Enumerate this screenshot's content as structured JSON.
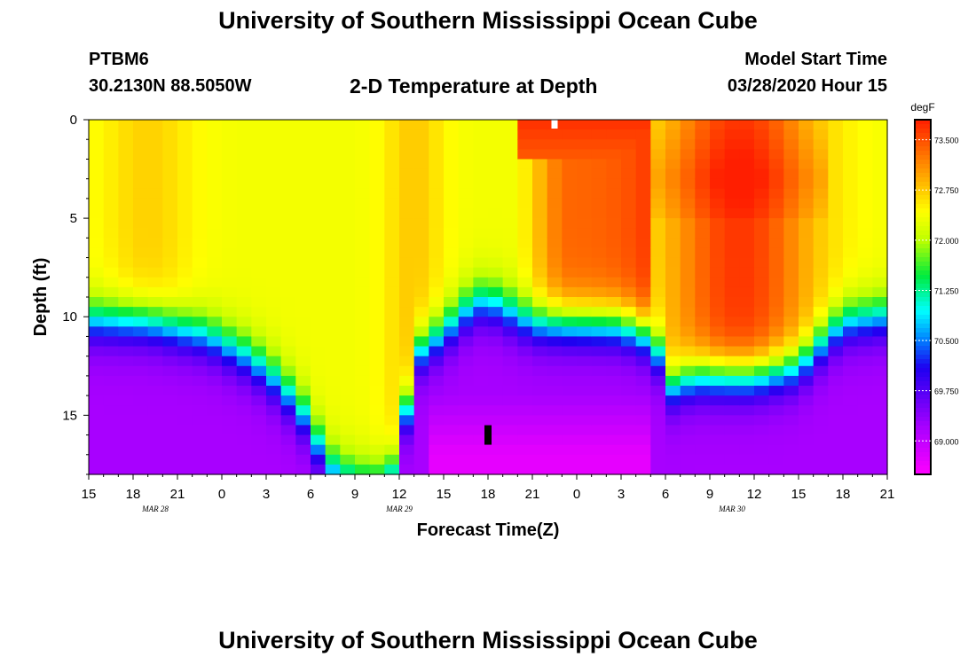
{
  "header": {
    "title": "University of Southern Mississippi Ocean Cube",
    "station_id": "PTBM6",
    "station_coords": "30.2130N 88.5050W",
    "plot_title": "2-D Temperature at Depth",
    "model_start_label": "Model Start Time",
    "model_start_value": "03/28/2020 Hour 15"
  },
  "footer": {
    "title": "University of Southern Mississippi Ocean Cube"
  },
  "chart_data": {
    "type": "heatmap",
    "title": "2-D Temperature at Depth",
    "xlabel": "Forecast Time(Z)",
    "ylabel": "Depth (ft)",
    "x_hours_range": [
      0,
      54
    ],
    "x_ticks": [
      {
        "h": 0,
        "label": "15"
      },
      {
        "h": 3,
        "label": "18"
      },
      {
        "h": 6,
        "label": "21"
      },
      {
        "h": 9,
        "label": "0"
      },
      {
        "h": 12,
        "label": "3"
      },
      {
        "h": 15,
        "label": "6"
      },
      {
        "h": 18,
        "label": "9"
      },
      {
        "h": 21,
        "label": "12"
      },
      {
        "h": 24,
        "label": "15"
      },
      {
        "h": 27,
        "label": "18"
      },
      {
        "h": 30,
        "label": "21"
      },
      {
        "h": 33,
        "label": "0"
      },
      {
        "h": 36,
        "label": "3"
      },
      {
        "h": 39,
        "label": "6"
      },
      {
        "h": 42,
        "label": "9"
      },
      {
        "h": 45,
        "label": "12"
      },
      {
        "h": 48,
        "label": "15"
      },
      {
        "h": 51,
        "label": "18"
      },
      {
        "h": 54,
        "label": "21"
      }
    ],
    "date_labels": [
      {
        "h": 4.5,
        "label": "MAR 28"
      },
      {
        "h": 21,
        "label": "MAR 29"
      },
      {
        "h": 43.5,
        "label": "MAR 30"
      }
    ],
    "ylim": [
      0,
      18
    ],
    "y_ticks": [
      0,
      5,
      10,
      15
    ],
    "colorbar": {
      "unit": "degF",
      "min": 68.5,
      "max": 73.8,
      "ticks": [
        "73.500",
        "72.750",
        "72.000",
        "71.250",
        "70.500",
        "69.750",
        "69.000"
      ],
      "tick_values": [
        73.5,
        72.75,
        72.0,
        71.25,
        70.5,
        69.75,
        69.0
      ]
    },
    "grid": "hourly x 0.5 ft depth bins",
    "markers": [
      {
        "h": 31.5,
        "depth_ft": 0.3,
        "color": "#ffffff"
      },
      {
        "h": 27,
        "depth_ft": 16.0,
        "color": "#000000"
      }
    ],
    "description": "Warm near-surface layer (72-73.5 degF) over cooler bottom water (~69 degF); thermocline deepens to the bottom near hours 16-20 and rises to ~10 ft near hours 25-36."
  }
}
